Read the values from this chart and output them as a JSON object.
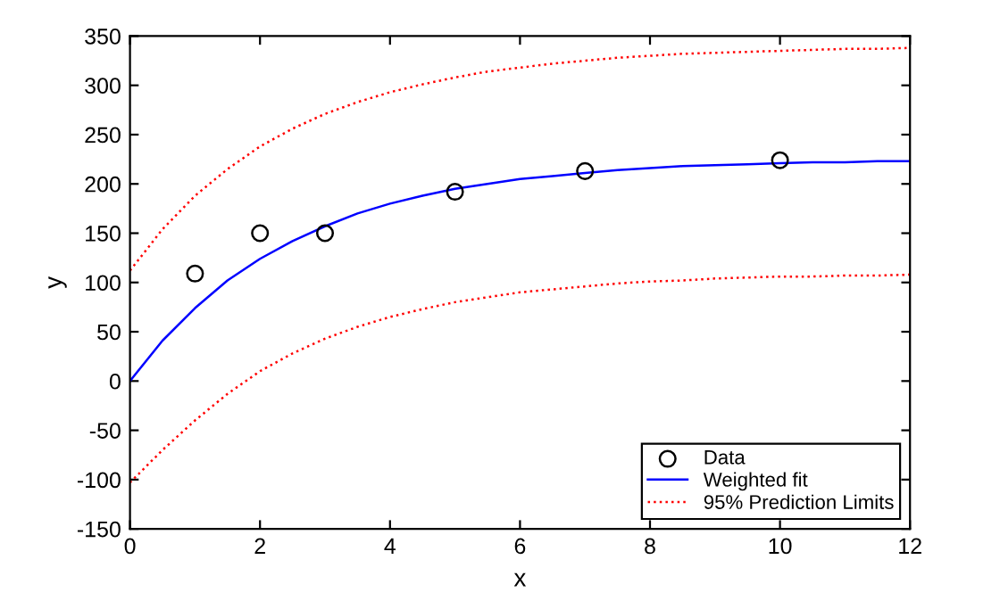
{
  "chart_data": {
    "type": "line",
    "xlabel": "x",
    "ylabel": "y",
    "xlim": [
      0,
      12
    ],
    "ylim": [
      -150,
      350
    ],
    "xticks": [
      0,
      2,
      4,
      6,
      8,
      10,
      12
    ],
    "yticks": [
      -150,
      -100,
      -50,
      0,
      50,
      100,
      150,
      200,
      250,
      300,
      350
    ],
    "grid": false,
    "legend": "bottom right",
    "series": [
      {
        "name": "Data",
        "type": "scatter",
        "marker": "circle",
        "color": "#000000",
        "x": [
          1,
          2,
          3,
          5,
          7,
          10
        ],
        "values": [
          109,
          150,
          150,
          192,
          213,
          224
        ]
      },
      {
        "name": "Weighted fit",
        "line_style": "solid",
        "color": "#0000ff",
        "x": [
          0,
          0.5,
          1,
          1.5,
          2,
          2.5,
          3,
          3.5,
          4,
          4.5,
          5,
          5.5,
          6,
          6.5,
          7,
          7.5,
          8,
          8.5,
          9,
          9.5,
          10,
          10.5,
          11,
          11.5,
          12
        ],
        "values": [
          0,
          41,
          74,
          102,
          124,
          142,
          157,
          170,
          180,
          188,
          195,
          200,
          205,
          208,
          211,
          214,
          216,
          218,
          219,
          220,
          221,
          222,
          222,
          223,
          223
        ]
      },
      {
        "name": "95% Prediction Limits",
        "line_style": "dotted",
        "color": "#ff0000",
        "x": [
          0,
          0.5,
          1,
          1.5,
          2,
          2.5,
          3,
          3.5,
          4,
          4.5,
          5,
          5.5,
          6,
          6.5,
          7,
          7.5,
          8,
          8.5,
          9,
          9.5,
          10,
          10.5,
          11,
          11.5,
          12
        ],
        "values": [
          112,
          154,
          188,
          215,
          238,
          256,
          271,
          283,
          293,
          301,
          308,
          314,
          318,
          322,
          325,
          328,
          330,
          332,
          333,
          334,
          335,
          336,
          337,
          337,
          338
        ]
      },
      {
        "line_style": "dotted",
        "color": "#ff0000",
        "x": [
          0,
          0.5,
          1,
          1.5,
          2,
          2.5,
          3,
          3.5,
          4,
          4.5,
          5,
          5.5,
          6,
          6.5,
          7,
          7.5,
          8,
          8.5,
          9,
          9.5,
          10,
          10.5,
          11,
          11.5,
          12
        ],
        "values": [
          -103,
          -70,
          -40,
          -13,
          10,
          28,
          43,
          55,
          65,
          73,
          80,
          85,
          90,
          93,
          96,
          99,
          101,
          102,
          104,
          105,
          106,
          106,
          107,
          107,
          108
        ]
      }
    ]
  }
}
